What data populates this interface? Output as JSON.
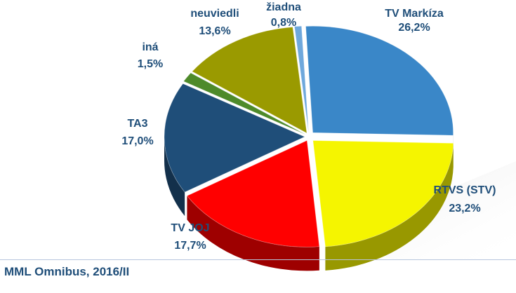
{
  "chart_data": {
    "type": "pie",
    "slices": [
      {
        "label": "TV Markíza",
        "value": 26.2,
        "value_label": "26,2%",
        "color": "#3a87c8"
      },
      {
        "label": "RTVS (STV)",
        "value": 23.2,
        "value_label": "23,2%",
        "color": "#f5f500"
      },
      {
        "label": "TV JOJ",
        "value": 17.7,
        "value_label": "17,7%",
        "color": "#ff0000"
      },
      {
        "label": "TA3",
        "value": 17.0,
        "value_label": "17,0%",
        "color": "#1f4e79"
      },
      {
        "label": "iná",
        "value": 1.5,
        "value_label": "1,5%",
        "color": "#4e8a2a"
      },
      {
        "label": "neuviedli",
        "value": 13.6,
        "value_label": "13,6%",
        "color": "#9a9a00"
      },
      {
        "label": "žiadna",
        "value": 0.8,
        "value_label": "0,8%",
        "color": "#6fa8dc"
      }
    ],
    "legend": "none",
    "style": "3d-exploded"
  },
  "footer": {
    "source": "MML Omnibus, 2016/II"
  }
}
